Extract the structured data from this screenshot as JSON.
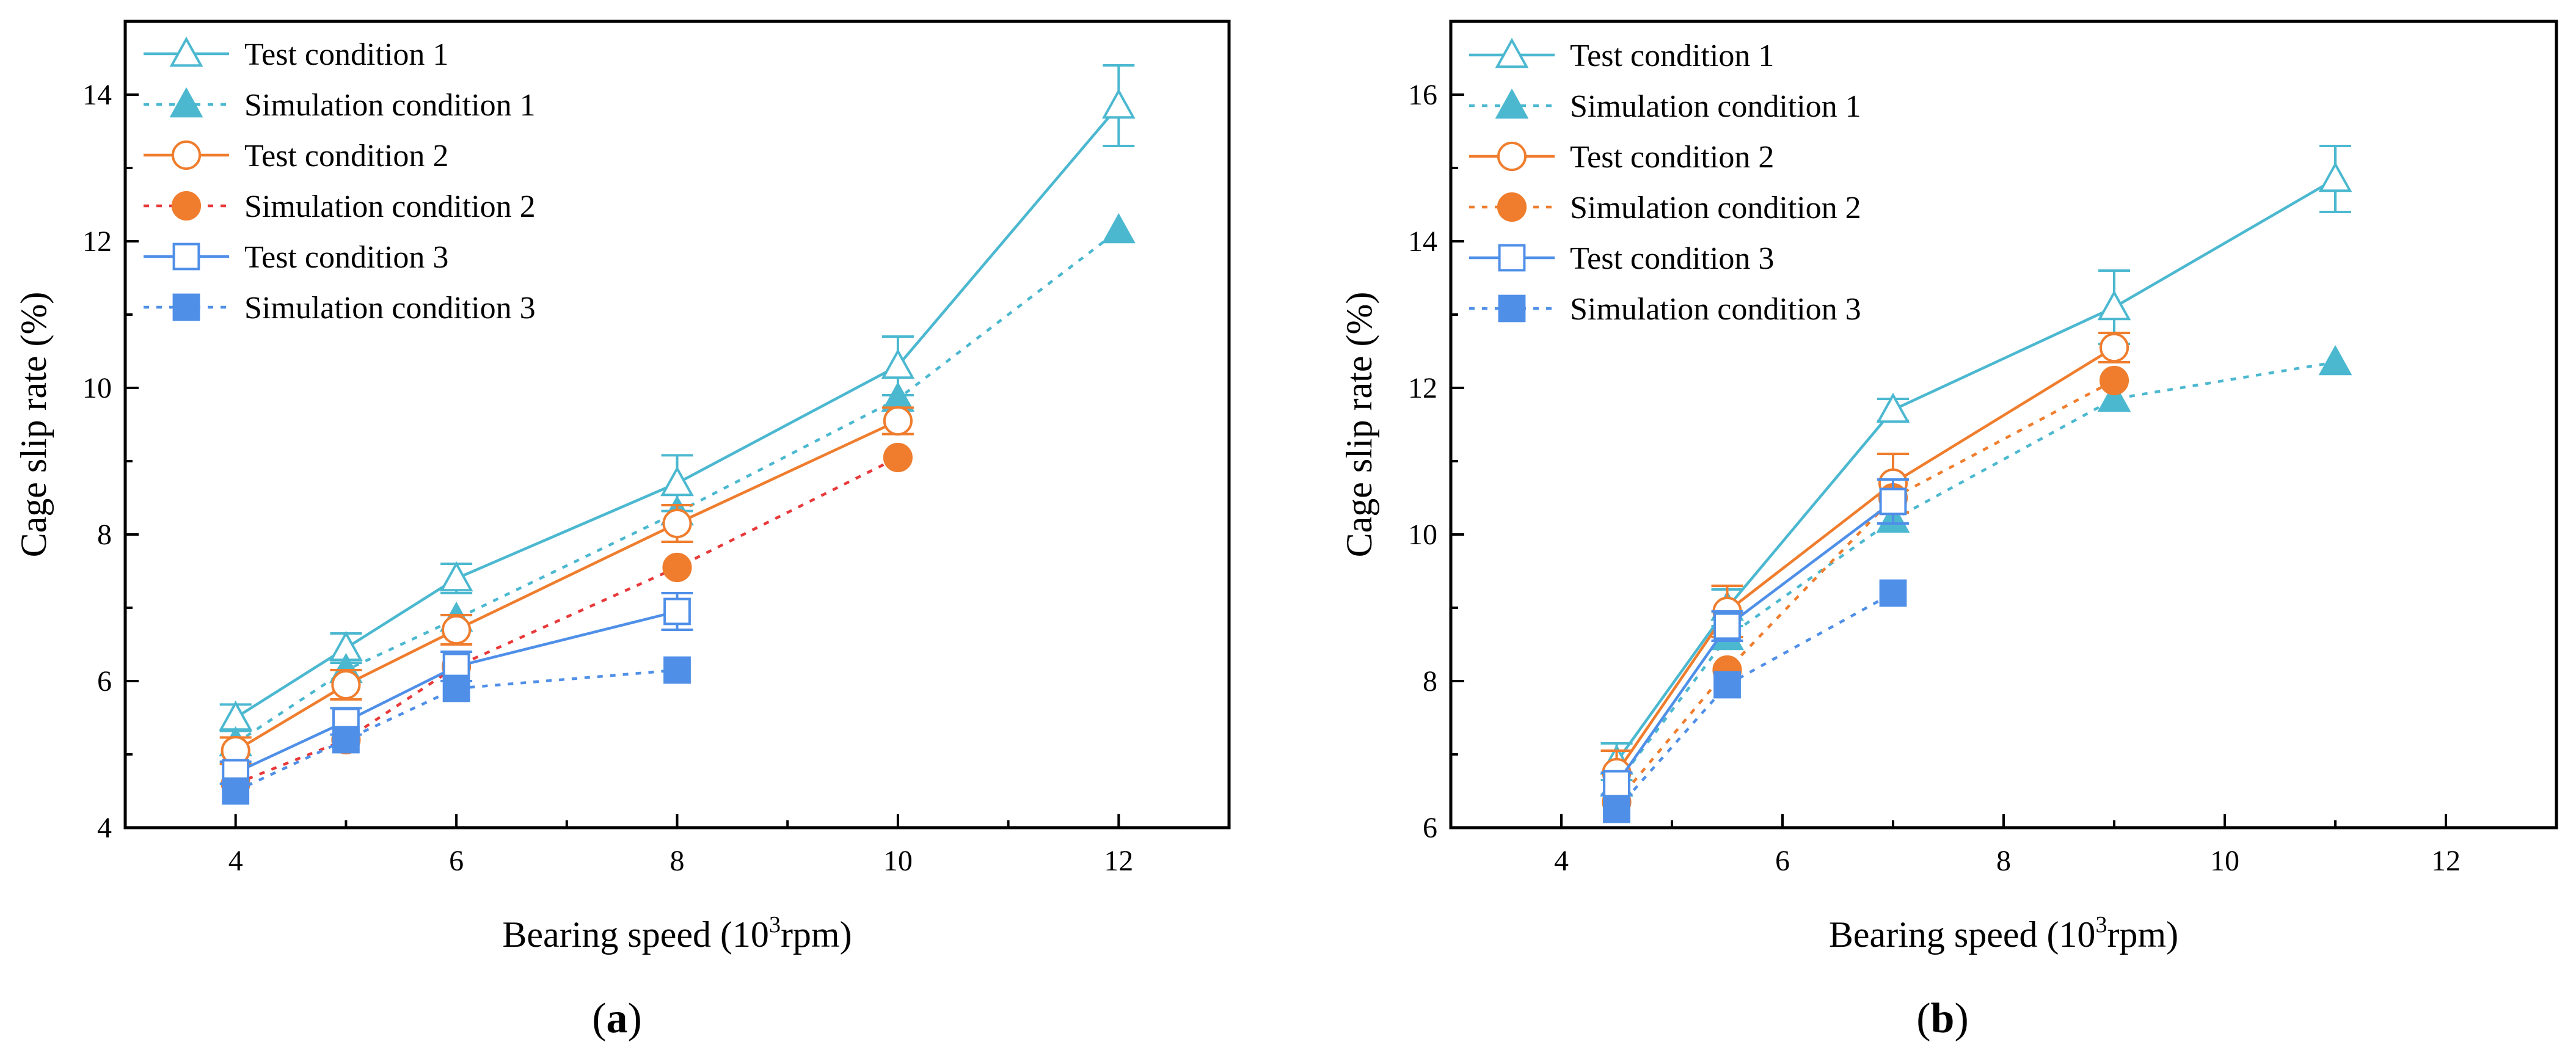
{
  "chart_data": [
    {
      "type": "line",
      "panel_label": "(a)",
      "panel_letter": "a",
      "xlabel_prefix": "Bearing speed (10",
      "xlabel_sup": "3",
      "xlabel_suffix": "rpm)",
      "ylabel": "Cage slip rate (%)",
      "xlim": [
        3,
        13
      ],
      "ylim": [
        4,
        15
      ],
      "xticks": [
        4,
        6,
        8,
        10,
        12
      ],
      "yticks": [
        4,
        6,
        8,
        10,
        12,
        14
      ],
      "grid": false,
      "legend_position": "top-left",
      "series": [
        {
          "name": "Test condition 1",
          "color": "#4bb8d0",
          "marker": "triangle-open",
          "line": "solid",
          "x": [
            4,
            5,
            6,
            8,
            10,
            12
          ],
          "y": [
            5.5,
            6.45,
            7.4,
            8.7,
            10.3,
            13.85
          ],
          "err": [
            0.18,
            0.2,
            0.2,
            0.38,
            0.4,
            0.55
          ]
        },
        {
          "name": "Simulation condition 1",
          "color": "#4bb8d0",
          "marker": "triangle-filled",
          "line": "dotted",
          "x": [
            4,
            5,
            6,
            8,
            10,
            12
          ],
          "y": [
            5.15,
            6.15,
            6.85,
            8.3,
            9.85,
            12.15
          ]
        },
        {
          "name": "Test condition 2",
          "color": "#ef7d2d",
          "marker": "circle-open",
          "line": "solid",
          "x": [
            4,
            5,
            6,
            8,
            10
          ],
          "y": [
            5.05,
            5.95,
            6.7,
            8.15,
            9.55
          ],
          "err": [
            0.18,
            0.2,
            0.2,
            0.25,
            0.18
          ]
        },
        {
          "name": "Simulation condition 2",
          "color": "#e8393a",
          "point_color": "#ef7d2d",
          "marker": "circle-filled",
          "line": "dotted",
          "x": [
            4,
            5,
            6,
            8,
            10
          ],
          "y": [
            4.6,
            5.2,
            6.2,
            7.55,
            9.05
          ]
        },
        {
          "name": "Test condition 3",
          "color": "#4f8fe8",
          "marker": "square-open",
          "line": "solid",
          "x": [
            4,
            5,
            6,
            8
          ],
          "y": [
            4.75,
            5.45,
            6.2,
            6.95
          ],
          "err": [
            0.15,
            0.18,
            0.2,
            0.25
          ]
        },
        {
          "name": "Simulation condition 3",
          "color": "#4f8fe8",
          "marker": "square-filled",
          "line": "dotted",
          "x": [
            4,
            5,
            6,
            8
          ],
          "y": [
            4.5,
            5.2,
            5.9,
            6.15
          ]
        }
      ]
    },
    {
      "type": "line",
      "panel_label": "(b)",
      "panel_letter": "b",
      "xlabel_prefix": "Bearing speed (10",
      "xlabel_sup": "3",
      "xlabel_suffix": "rpm)",
      "ylabel": "Cage slip rate (%)",
      "xlim": [
        3,
        13
      ],
      "ylim": [
        6,
        17
      ],
      "xticks": [
        4,
        6,
        8,
        10,
        12
      ],
      "yticks": [
        6,
        8,
        10,
        12,
        14,
        16
      ],
      "grid": false,
      "legend_position": "top-left",
      "series": [
        {
          "name": "Test condition 1",
          "color": "#4bb8d0",
          "marker": "triangle-open",
          "line": "solid",
          "x": [
            4.5,
            5.5,
            7,
            9,
            11
          ],
          "y": [
            6.9,
            9.0,
            11.7,
            13.1,
            14.85
          ],
          "err": [
            0.25,
            0.25,
            0.15,
            0.5,
            0.45
          ]
        },
        {
          "name": "Simulation condition 1",
          "color": "#4bb8d0",
          "marker": "triangle-filled",
          "line": "dotted",
          "x": [
            4.5,
            5.5,
            7,
            9,
            11
          ],
          "y": [
            6.6,
            8.6,
            10.2,
            11.85,
            12.35
          ]
        },
        {
          "name": "Test condition 2",
          "color": "#ef7d2d",
          "marker": "circle-open",
          "line": "solid",
          "x": [
            4.5,
            5.5,
            7,
            9
          ],
          "y": [
            6.75,
            8.95,
            10.7,
            12.55
          ],
          "err": [
            0.3,
            0.35,
            0.4,
            0.2
          ]
        },
        {
          "name": "Simulation condition 2",
          "color": "#ef7d2d",
          "marker": "circle-filled",
          "line": "dotted",
          "x": [
            4.5,
            5.5,
            7,
            9
          ],
          "y": [
            6.35,
            8.15,
            10.5,
            12.1
          ]
        },
        {
          "name": "Test condition 3",
          "color": "#4f8fe8",
          "marker": "square-open",
          "line": "solid",
          "x": [
            4.5,
            5.5,
            7,
            9
          ],
          "y": [
            6.6,
            8.75,
            10.45,
            null
          ],
          "err": [
            0.15,
            0.2,
            0.3,
            null
          ]
        },
        {
          "name": "Simulation condition 3",
          "color": "#4f8fe8",
          "marker": "square-filled",
          "line": "dotted",
          "x": [
            4.5,
            5.5,
            7
          ],
          "y": [
            6.25,
            7.95,
            9.2
          ]
        }
      ]
    }
  ]
}
